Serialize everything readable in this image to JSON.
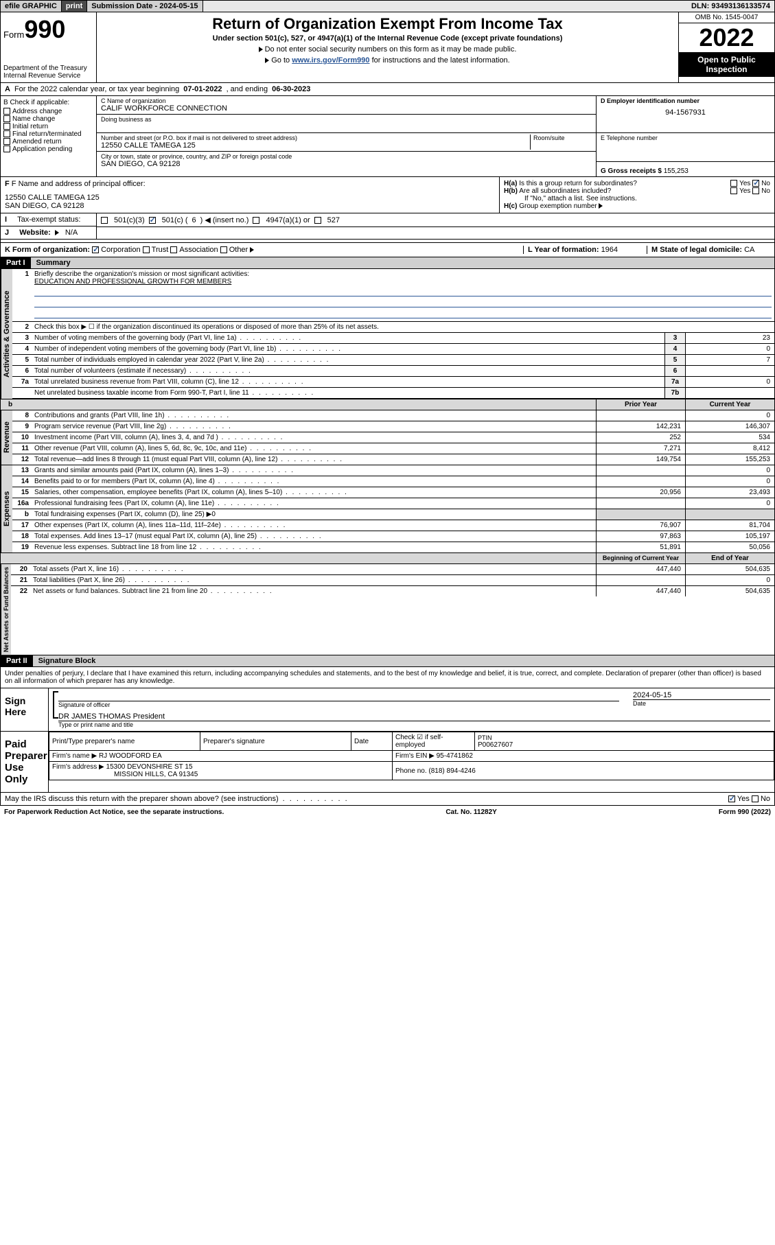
{
  "topbar": {
    "efile": "efile GRAPHIC",
    "print": "print",
    "subdate_lbl": "Submission Date - ",
    "subdate": "2024-05-15",
    "dln_lbl": "DLN: ",
    "dln": "93493136133574"
  },
  "header": {
    "form_small": "Form",
    "form_num": "990",
    "dept": "Department of the Treasury",
    "irs": "Internal Revenue Service",
    "title": "Return of Organization Exempt From Income Tax",
    "sub": "Under section 501(c), 527, or 4947(a)(1) of the Internal Revenue Code (except private foundations)",
    "note1": "Do not enter social security numbers on this form as it may be made public.",
    "note2_pre": "Go to ",
    "note2_link": "www.irs.gov/Form990",
    "note2_post": " for instructions and the latest information.",
    "omb": "OMB No. 1545-0047",
    "year": "2022",
    "open": "Open to Public Inspection"
  },
  "A": {
    "text_pre": "For the 2022 calendar year, or tax year beginning ",
    "begin": "07-01-2022",
    "mid": " , and ending ",
    "end": "06-30-2023"
  },
  "B": {
    "hdr": "B Check if applicable:",
    "items": [
      "Address change",
      "Name change",
      "Initial return",
      "Final return/terminated",
      "Amended return",
      "Application pending"
    ]
  },
  "C": {
    "name_lbl": "C Name of organization",
    "name": "CALIF WORKFORCE CONNECTION",
    "dba_lbl": "Doing business as",
    "addr_lbl": "Number and street (or P.O. box if mail is not delivered to street address)",
    "room_lbl": "Room/suite",
    "addr": "12550 CALLE TAMEGA 125",
    "city_lbl": "City or town, state or province, country, and ZIP or foreign postal code",
    "city": "SAN DIEGO, CA  92128"
  },
  "D": {
    "lbl": "D Employer identification number",
    "val": "94-1567931"
  },
  "E": {
    "lbl": "E Telephone number",
    "val": ""
  },
  "G": {
    "lbl": "G Gross receipts $ ",
    "val": "155,253"
  },
  "F": {
    "lbl": "F Name and address of principal officer:",
    "addr1": "12550 CALLE TAMEGA 125",
    "addr2": "SAN DIEGO, CA  92128"
  },
  "H": {
    "a": "Is this a group return for subordinates?",
    "a_yes": "Yes",
    "a_no": "No",
    "b": "Are all subordinates included?",
    "b_note": "If \"No,\" attach a list. See instructions.",
    "c": "Group exemption number"
  },
  "I": {
    "lbl": "Tax-exempt status:",
    "o1": "501(c)(3)",
    "o2_pre": "501(c) (",
    "o2_num": "6",
    "o2_post": ") ◀ (insert no.)",
    "o3": "4947(a)(1) or",
    "o4": "527"
  },
  "J": {
    "lbl": "Website:",
    "val": "N/A"
  },
  "K": {
    "lbl": "K Form of organization:",
    "o1": "Corporation",
    "o2": "Trust",
    "o3": "Association",
    "o4": "Other"
  },
  "L": {
    "lbl": "L Year of formation: ",
    "val": "1964"
  },
  "M": {
    "lbl": "M State of legal domicile: ",
    "val": "CA"
  },
  "part1": {
    "hdr": "Part I",
    "title": "Summary",
    "l1_lbl": "Briefly describe the organization's mission or most significant activities:",
    "l1_val": "EDUCATION AND PROFESSIONAL GROWTH FOR MEMBERS",
    "l2": "Check this box ▶ ☐  if the organization discontinued its operations or disposed of more than 25% of its net assets.",
    "rows_gov": [
      {
        "n": "3",
        "d": "Number of voting members of the governing body (Part VI, line 1a)",
        "b": "3",
        "v": "23"
      },
      {
        "n": "4",
        "d": "Number of independent voting members of the governing body (Part VI, line 1b)",
        "b": "4",
        "v": "0"
      },
      {
        "n": "5",
        "d": "Total number of individuals employed in calendar year 2022 (Part V, line 2a)",
        "b": "5",
        "v": "7"
      },
      {
        "n": "6",
        "d": "Total number of volunteers (estimate if necessary)",
        "b": "6",
        "v": ""
      },
      {
        "n": "7a",
        "d": "Total unrelated business revenue from Part VIII, column (C), line 12",
        "b": "7a",
        "v": "0"
      },
      {
        "n": "",
        "d": "Net unrelated business taxable income from Form 990-T, Part I, line 11",
        "b": "7b",
        "v": ""
      }
    ],
    "col_prior": "Prior Year",
    "col_curr": "Current Year",
    "rows_rev": [
      {
        "n": "8",
        "d": "Contributions and grants (Part VIII, line 1h)",
        "p": "",
        "c": "0"
      },
      {
        "n": "9",
        "d": "Program service revenue (Part VIII, line 2g)",
        "p": "142,231",
        "c": "146,307"
      },
      {
        "n": "10",
        "d": "Investment income (Part VIII, column (A), lines 3, 4, and 7d )",
        "p": "252",
        "c": "534"
      },
      {
        "n": "11",
        "d": "Other revenue (Part VIII, column (A), lines 5, 6d, 8c, 9c, 10c, and 11e)",
        "p": "7,271",
        "c": "8,412"
      },
      {
        "n": "12",
        "d": "Total revenue—add lines 8 through 11 (must equal Part VIII, column (A), line 12)",
        "p": "149,754",
        "c": "155,253"
      }
    ],
    "rows_exp": [
      {
        "n": "13",
        "d": "Grants and similar amounts paid (Part IX, column (A), lines 1–3)",
        "p": "",
        "c": "0"
      },
      {
        "n": "14",
        "d": "Benefits paid to or for members (Part IX, column (A), line 4)",
        "p": "",
        "c": "0"
      },
      {
        "n": "15",
        "d": "Salaries, other compensation, employee benefits (Part IX, column (A), lines 5–10)",
        "p": "20,956",
        "c": "23,493"
      },
      {
        "n": "16a",
        "d": "Professional fundraising fees (Part IX, column (A), line 11e)",
        "p": "",
        "c": "0"
      },
      {
        "n": "b",
        "d": "Total fundraising expenses (Part IX, column (D), line 25) ▶0",
        "p": "—",
        "c": "—"
      },
      {
        "n": "17",
        "d": "Other expenses (Part IX, column (A), lines 11a–11d, 11f–24e)",
        "p": "76,907",
        "c": "81,704"
      },
      {
        "n": "18",
        "d": "Total expenses. Add lines 13–17 (must equal Part IX, column (A), line 25)",
        "p": "97,863",
        "c": "105,197"
      },
      {
        "n": "19",
        "d": "Revenue less expenses. Subtract line 18 from line 12",
        "p": "51,891",
        "c": "50,056"
      }
    ],
    "col_begin": "Beginning of Current Year",
    "col_end": "End of Year",
    "rows_net": [
      {
        "n": "20",
        "d": "Total assets (Part X, line 16)",
        "p": "447,440",
        "c": "504,635"
      },
      {
        "n": "21",
        "d": "Total liabilities (Part X, line 26)",
        "p": "",
        "c": "0"
      },
      {
        "n": "22",
        "d": "Net assets or fund balances. Subtract line 21 from line 20",
        "p": "447,440",
        "c": "504,635"
      }
    ],
    "tab_gov": "Activities & Governance",
    "tab_rev": "Revenue",
    "tab_exp": "Expenses",
    "tab_net": "Net Assets or Fund Balances"
  },
  "part2": {
    "hdr": "Part II",
    "title": "Signature Block",
    "decl": "Under penalties of perjury, I declare that I have examined this return, including accompanying schedules and statements, and to the best of my knowledge and belief, it is true, correct, and complete. Declaration of preparer (other than officer) is based on all information of which preparer has any knowledge.",
    "sign_here": "Sign Here",
    "sig_officer": "Signature of officer",
    "date_lbl": "Date",
    "date_val": "2024-05-15",
    "name_title": "DR JAMES THOMAS  President",
    "name_title_lbl": "Type or print name and title",
    "paid": "Paid Preparer Use Only",
    "pt_name": "Print/Type preparer's name",
    "pt_sig": "Preparer's signature",
    "pt_date": "Date",
    "pt_self": "Check ☑ if self-employed",
    "pt_ptin_lbl": "PTIN",
    "pt_ptin": "P00627607",
    "firm_name_lbl": "Firm's name  ▶",
    "firm_name": "RJ WOODFORD EA",
    "firm_ein_lbl": "Firm's EIN ▶",
    "firm_ein": "95-4741862",
    "firm_addr_lbl": "Firm's address ▶",
    "firm_addr1": "15300 DEVONSHIRE ST 15",
    "firm_addr2": "MISSION HILLS, CA  91345",
    "phone_lbl": "Phone no.",
    "phone": "(818) 894-4246",
    "may": "May the IRS discuss this return with the preparer shown above? (see instructions)",
    "yes": "Yes",
    "no": "No"
  },
  "footer": {
    "left": "For Paperwork Reduction Act Notice, see the separate instructions.",
    "mid": "Cat. No. 11282Y",
    "right": "Form 990 (2022)"
  }
}
